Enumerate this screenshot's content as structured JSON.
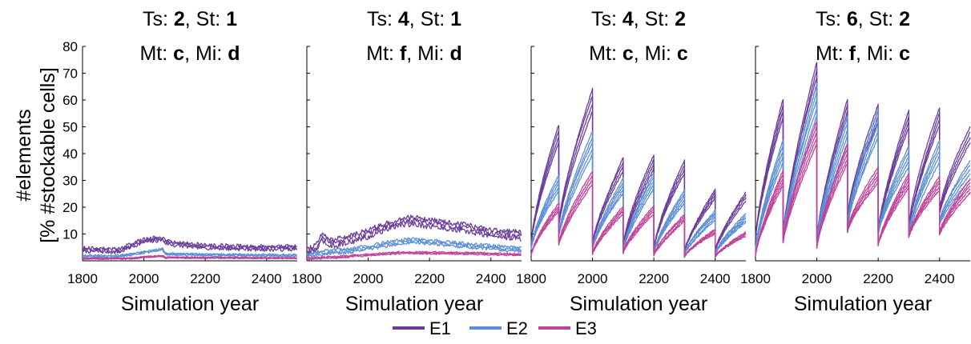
{
  "chart_data": {
    "type": "line",
    "ylabel_line1": "#elements",
    "ylabel_line2": "[% #stockable cells]",
    "xlabel": "Simulation year",
    "xlim": [
      1800,
      2500
    ],
    "ylim": [
      0,
      80
    ],
    "x_ticks": [
      1800,
      2000,
      2200,
      2400
    ],
    "y_ticks": [
      10,
      20,
      30,
      40,
      50,
      60,
      70,
      80
    ],
    "legend": {
      "placement": "bottom-center",
      "entries": [
        {
          "label": "E1",
          "color": "#6a3d9a"
        },
        {
          "label": "E2",
          "color": "#5b8fd6"
        },
        {
          "label": "E3",
          "color": "#c0439b"
        }
      ]
    },
    "panels": [
      {
        "title": {
          "ts_label": "Ts: ",
          "ts_value": "2",
          "st_label": ", St: ",
          "st_value": "1",
          "mt_label": "Mt: ",
          "mt_value": "c",
          "mi_label": ", Mi: ",
          "mi_value": "d"
        },
        "pattern": "steady",
        "series": [
          {
            "name": "E1",
            "keyframes": [
              [
                1800,
                4.2
              ],
              [
                1860,
                4.0
              ],
              [
                1920,
                3.8
              ],
              [
                1960,
                5.8
              ],
              [
                2000,
                7.5
              ],
              [
                2040,
                8.0
              ],
              [
                2060,
                8.5
              ],
              [
                2070,
                7.2
              ],
              [
                2100,
                6.3
              ],
              [
                2200,
                5.4
              ],
              [
                2300,
                5.0
              ],
              [
                2400,
                4.8
              ],
              [
                2500,
                4.8
              ]
            ],
            "runs": 3,
            "spread": 0.6,
            "noise": 0.7
          },
          {
            "name": "E2",
            "keyframes": [
              [
                1800,
                1.8
              ],
              [
                1900,
                1.6
              ],
              [
                1960,
                2.4
              ],
              [
                2000,
                3.2
              ],
              [
                2050,
                4.0
              ],
              [
                2060,
                4.6
              ],
              [
                2070,
                2.6
              ],
              [
                2200,
                2.2
              ],
              [
                2500,
                2.0
              ]
            ],
            "runs": 3,
            "spread": 0.3,
            "noise": 0.3
          },
          {
            "name": "E3",
            "keyframes": [
              [
                1800,
                0.8
              ],
              [
                1960,
                0.9
              ],
              [
                2000,
                1.4
              ],
              [
                2060,
                1.8
              ],
              [
                2070,
                1.2
              ],
              [
                2500,
                1.0
              ]
            ],
            "runs": 3,
            "spread": 0.2,
            "noise": 0.15
          }
        ]
      },
      {
        "title": {
          "ts_label": "Ts: ",
          "ts_value": "4",
          "st_label": ", St: ",
          "st_value": "1",
          "mt_label": "Mt: ",
          "mt_value": "f",
          "mi_label": ", Mi: ",
          "mi_value": "d"
        },
        "pattern": "steady",
        "series": [
          {
            "name": "E1",
            "keyframes": [
              [
                1800,
                3.0
              ],
              [
                1830,
                5.0
              ],
              [
                1850,
                9.0
              ],
              [
                1870,
                7.0
              ],
              [
                1900,
                7.0
              ],
              [
                1950,
                8.5
              ],
              [
                2000,
                10.0
              ],
              [
                2050,
                12.5
              ],
              [
                2100,
                14.5
              ],
              [
                2150,
                15.0
              ],
              [
                2200,
                14.0
              ],
              [
                2300,
                12.5
              ],
              [
                2400,
                10.5
              ],
              [
                2500,
                9.3
              ]
            ],
            "runs": 3,
            "spread": 1.2,
            "noise": 1.0
          },
          {
            "name": "E2",
            "keyframes": [
              [
                1800,
                1.5
              ],
              [
                1850,
                3.0
              ],
              [
                1950,
                4.0
              ],
              [
                2000,
                5.0
              ],
              [
                2100,
                7.0
              ],
              [
                2150,
                7.5
              ],
              [
                2250,
                6.5
              ],
              [
                2400,
                5.0
              ],
              [
                2500,
                4.2
              ]
            ],
            "runs": 3,
            "spread": 0.7,
            "noise": 0.6
          },
          {
            "name": "E3",
            "keyframes": [
              [
                1800,
                0.8
              ],
              [
                1900,
                1.4
              ],
              [
                2000,
                2.2
              ],
              [
                2100,
                3.0
              ],
              [
                2200,
                3.0
              ],
              [
                2400,
                2.6
              ],
              [
                2500,
                2.2
              ]
            ],
            "runs": 3,
            "spread": 0.3,
            "noise": 0.3
          }
        ]
      },
      {
        "title": {
          "ts_label": "Ts: ",
          "ts_value": "4",
          "st_label": ", St: ",
          "st_value": "2",
          "mt_label": "Mt: ",
          "mt_value": "c",
          "mi_label": ", Mi: ",
          "mi_value": "c"
        },
        "pattern": "sawtooth",
        "seg_bounds": [
          1800,
          1890,
          2000,
          2100,
          2200,
          2300,
          2400,
          2500
        ],
        "series": [
          {
            "name": "E1",
            "starts": [
              6.0,
              13.0,
              6.0,
              5.5,
              4.0,
              3.5,
              3.5
            ],
            "ends": [
              47.5,
              60.0,
              36.0,
              37.0,
              35.0,
              25.0,
              24.0
            ],
            "runs": 4,
            "spread": 0.14
          },
          {
            "name": "E2",
            "starts": [
              4.5,
              9.5,
              4.5,
              4.0,
              3.0,
              2.5,
              2.5
            ],
            "ends": [
              29.0,
              44.0,
              28.0,
              30.0,
              24.0,
              17.0,
              16.0
            ],
            "runs": 5,
            "spread": 0.2
          },
          {
            "name": "E3",
            "starts": [
              2.0,
              6.0,
              2.5,
              3.0,
              2.0,
              1.5,
              1.5
            ],
            "ends": [
              20.0,
              31.0,
              19.0,
              19.0,
              16.0,
              11.0,
              10.0
            ],
            "runs": 4,
            "spread": 0.15
          }
        ]
      },
      {
        "title": {
          "ts_label": "Ts: ",
          "ts_value": "6",
          "st_label": ", St: ",
          "st_value": "2",
          "mt_label": "Mt: ",
          "mt_value": "f",
          "mi_label": ", Mi: ",
          "mi_value": "c"
        },
        "pattern": "sawtooth",
        "seg_bounds": [
          1800,
          1890,
          2000,
          2100,
          2200,
          2300,
          2400,
          2500
        ],
        "series": [
          {
            "name": "E1",
            "starts": [
              8.0,
              9.0,
              8.0,
              16.0,
              11.0,
              12.0,
              18.0
            ],
            "ends": [
              57.0,
              70.0,
              57.0,
              55.0,
              53.0,
              54.0,
              47.0
            ],
            "runs": 4,
            "spread": 0.12
          },
          {
            "name": "E2",
            "starts": [
              4.0,
              8.0,
              7.0,
              13.0,
              10.0,
              10.0,
              14.0
            ],
            "ends": [
              41.0,
              60.0,
              49.0,
              51.0,
              39.0,
              41.0,
              34.0
            ],
            "runs": 5,
            "spread": 0.2
          },
          {
            "name": "E3",
            "starts": [
              2.0,
              7.0,
              5.0,
              11.0,
              6.0,
              9.0,
              10.0
            ],
            "ends": [
              31.0,
              48.0,
              40.0,
              32.0,
              30.0,
              29.0,
              28.0
            ],
            "runs": 5,
            "spread": 0.18
          }
        ]
      }
    ]
  }
}
